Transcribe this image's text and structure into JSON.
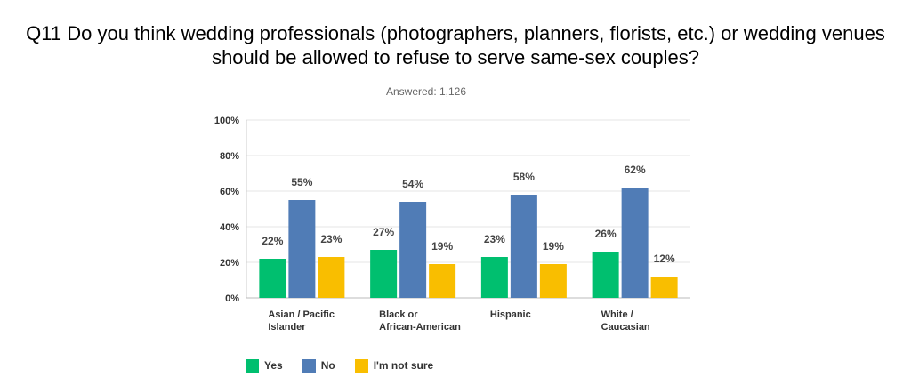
{
  "title": "Q11 Do you think wedding professionals (photographers, planners, florists, etc.) or wedding venues should be allowed to refuse to serve same-sex couples?",
  "subtitle": "Answered: 1,126",
  "colors": {
    "Yes": "#00bf6f",
    "No": "#507cb6",
    "I'm not sure": "#f9be00"
  },
  "chart_data": {
    "type": "bar",
    "categories": [
      [
        "Asian / Pacific",
        "Islander"
      ],
      [
        "Black or",
        "African-American"
      ],
      [
        "Hispanic"
      ],
      [
        "White /",
        "Caucasian"
      ]
    ],
    "series": [
      {
        "name": "Yes",
        "values": [
          22,
          27,
          23,
          26
        ]
      },
      {
        "name": "No",
        "values": [
          55,
          54,
          58,
          62
        ]
      },
      {
        "name": "I'm not sure",
        "values": [
          23,
          19,
          19,
          12
        ]
      }
    ],
    "yticks": [
      "0%",
      "20%",
      "40%",
      "60%",
      "80%",
      "100%"
    ],
    "ylim": [
      0,
      100
    ],
    "value_suffix": "%",
    "grid": true,
    "legend": "bottom-left"
  }
}
